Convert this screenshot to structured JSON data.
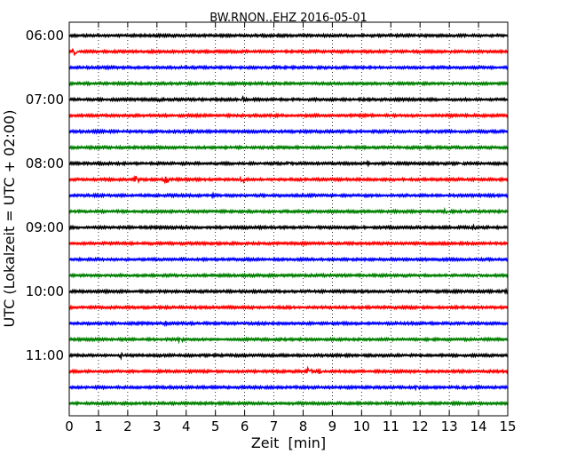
{
  "chart_data": {
    "type": "line",
    "title": "BW.RNON..EHZ 2016-05-01",
    "xlabel": "Zeit  [min]",
    "ylabel": "UTC (Lokalzeit = UTC + 02:00)",
    "xlim": [
      0,
      15
    ],
    "x_ticks": [
      "0",
      "1",
      "2",
      "3",
      "4",
      "5",
      "6",
      "7",
      "8",
      "9",
      "10",
      "11",
      "12",
      "13",
      "14",
      "15"
    ],
    "y_ticks": [
      "06:00",
      "07:00",
      "08:00",
      "09:00",
      "10:00",
      "11:00"
    ],
    "grid": "vertical dotted",
    "trace_colors": [
      "#000000",
      "#ff0000",
      "#0000ff",
      "#008000"
    ],
    "traces": [
      {
        "start": "06:00",
        "events": []
      },
      {
        "start": "06:15",
        "events": [
          {
            "t": 0.2,
            "amp": 0.45
          }
        ]
      },
      {
        "start": "06:30",
        "events": []
      },
      {
        "start": "06:45",
        "events": []
      },
      {
        "start": "07:00",
        "events": [
          {
            "t": 3.1,
            "amp": 0.15
          },
          {
            "t": 5.9,
            "amp": 0.25
          }
        ]
      },
      {
        "start": "07:15",
        "events": []
      },
      {
        "start": "07:30",
        "events": []
      },
      {
        "start": "07:45",
        "events": []
      },
      {
        "start": "08:00",
        "events": [
          {
            "t": 7.5,
            "amp": 0.15
          },
          {
            "t": 10.2,
            "amp": 0.12
          },
          {
            "t": 13.4,
            "amp": 0.15
          }
        ]
      },
      {
        "start": "08:15",
        "events": [
          {
            "t": 2.3,
            "amp": 0.35
          },
          {
            "t": 3.3,
            "amp": 0.55
          },
          {
            "t": 5.9,
            "amp": 0.45
          }
        ]
      },
      {
        "start": "08:30",
        "events": [
          {
            "t": 4.9,
            "amp": 0.1
          }
        ]
      },
      {
        "start": "08:45",
        "events": [
          {
            "t": 12.9,
            "amp": 0.3
          }
        ]
      },
      {
        "start": "09:00",
        "events": [
          {
            "t": 13.8,
            "amp": 0.45
          }
        ]
      },
      {
        "start": "09:15",
        "events": []
      },
      {
        "start": "09:30",
        "events": []
      },
      {
        "start": "09:45",
        "events": [
          {
            "t": 14.0,
            "amp": 0.15
          }
        ]
      },
      {
        "start": "10:00",
        "events": [
          {
            "t": 14.9,
            "amp": 0.15
          }
        ]
      },
      {
        "start": "10:15",
        "events": []
      },
      {
        "start": "10:30",
        "events": [
          {
            "t": 3.3,
            "amp": 0.15
          }
        ]
      },
      {
        "start": "10:45",
        "events": [
          {
            "t": 3.8,
            "amp": 0.25
          }
        ]
      },
      {
        "start": "11:00",
        "events": [
          {
            "t": 1.8,
            "amp": 0.3
          }
        ]
      },
      {
        "start": "11:15",
        "events": [
          {
            "t": 8.2,
            "amp": 0.45
          },
          {
            "t": 8.6,
            "amp": 0.3
          }
        ]
      },
      {
        "start": "11:30",
        "events": [
          {
            "t": 11.9,
            "amp": 0.2
          },
          {
            "t": 13.4,
            "amp": 0.12
          }
        ]
      },
      {
        "start": "11:45",
        "events": []
      }
    ]
  }
}
